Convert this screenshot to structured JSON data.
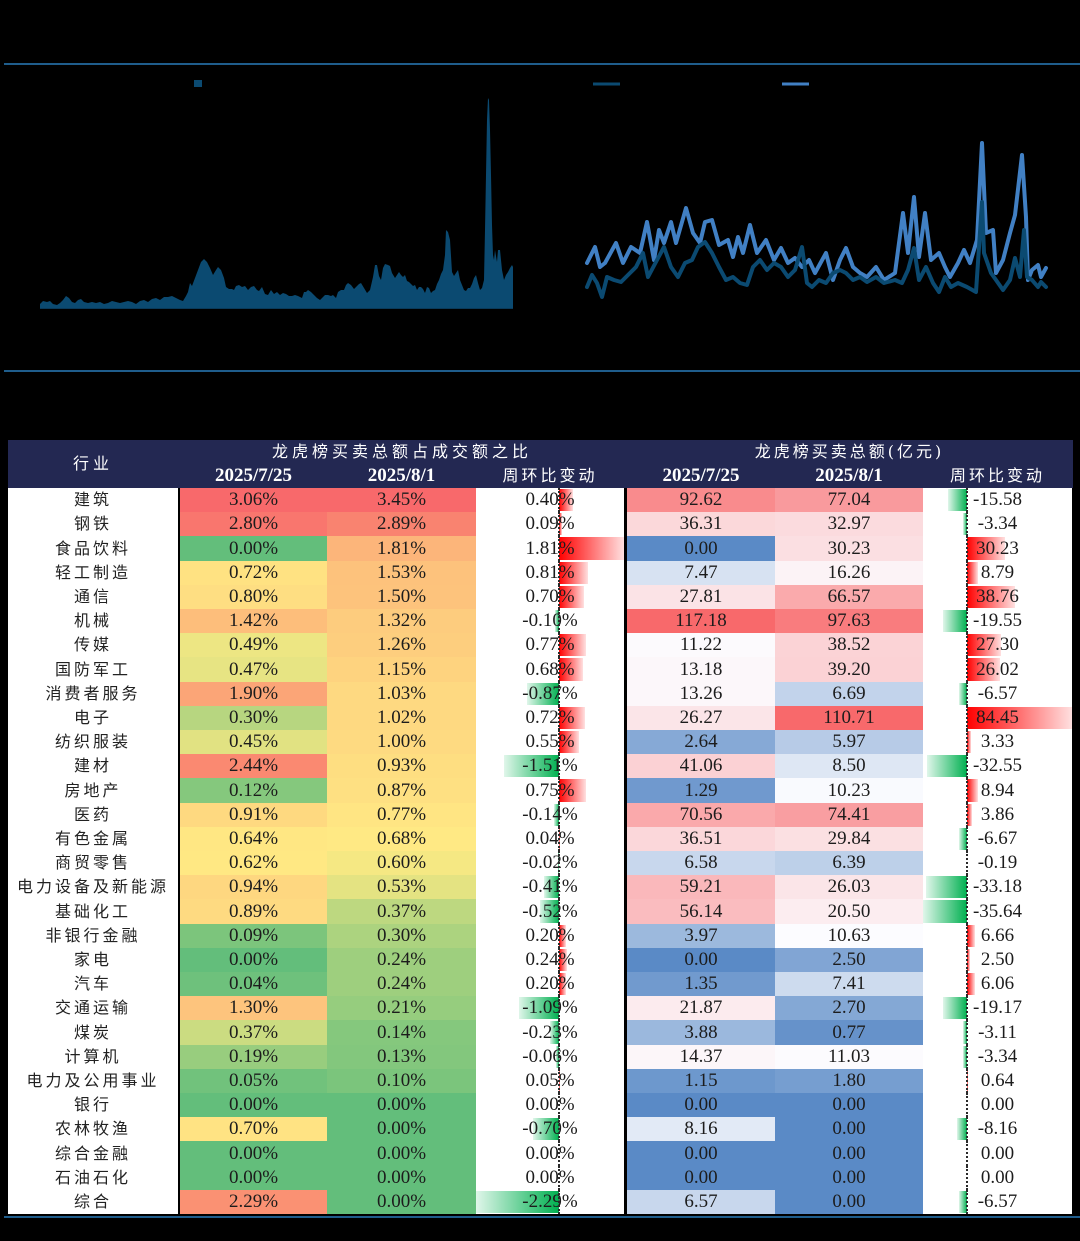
{
  "rules": {
    "color": "#1f5d8c"
  },
  "chart_data": [
    {
      "type": "area",
      "title": "",
      "xlabel": "",
      "ylabel": "",
      "legend_position": "top",
      "series": [
        {
          "name": "",
          "color": "#0b4a71",
          "x": [
            0,
            3,
            7,
            10,
            13,
            17,
            20,
            23,
            26,
            29,
            32,
            35,
            38,
            41,
            44,
            48,
            52,
            56,
            60,
            64,
            68,
            72,
            76,
            80,
            84,
            88,
            92,
            96,
            100,
            104,
            108,
            112,
            116,
            120,
            124,
            128,
            132,
            136,
            140,
            143,
            146,
            148,
            150,
            152,
            155,
            158,
            161,
            164,
            167,
            170,
            173,
            176,
            178,
            181,
            184,
            186,
            189,
            192,
            194,
            196,
            199,
            202,
            205,
            208,
            211,
            214,
            217,
            219,
            222,
            225,
            228,
            231,
            234,
            237,
            240,
            243,
            246,
            249,
            252,
            255,
            258,
            260,
            262,
            264,
            266,
            268,
            271,
            274,
            277,
            280,
            283,
            285,
            288,
            291,
            293,
            296,
            298,
            301,
            304,
            306,
            308,
            311,
            314,
            317,
            319,
            321,
            324,
            327,
            330,
            333,
            335,
            337,
            339,
            341,
            343,
            345,
            348,
            350,
            352,
            355,
            357,
            359,
            361,
            363,
            365,
            367,
            369,
            371,
            373,
            375,
            377,
            379,
            381,
            383,
            385,
            387,
            389,
            391,
            393,
            395,
            397,
            399,
            401,
            403,
            405,
            406,
            408,
            410,
            412,
            414,
            416,
            418,
            420,
            422,
            424,
            426,
            428,
            430,
            432,
            434,
            436,
            438,
            440,
            442,
            444,
            445,
            446,
            447,
            448,
            449,
            450,
            451,
            452,
            453,
            454,
            455,
            457,
            458,
            460,
            462,
            464,
            466,
            468,
            470,
            472,
            473
          ],
          "values": [
            4,
            7,
            6,
            7,
            4,
            3,
            5,
            8,
            12,
            10,
            6,
            5,
            8,
            9,
            6,
            5,
            6,
            5,
            6,
            4,
            5,
            7,
            6,
            5,
            6,
            7,
            6,
            4,
            7,
            8,
            6,
            9,
            10,
            8,
            11,
            11,
            12,
            10,
            8,
            7,
            12,
            16,
            25,
            22,
            30,
            38,
            46,
            49,
            46,
            40,
            33,
            38,
            41,
            38,
            30,
            21,
            19,
            19,
            18,
            22,
            23,
            21,
            22,
            18,
            21,
            22,
            18,
            17,
            21,
            14,
            13,
            18,
            14,
            16,
            13,
            15,
            14,
            12,
            12,
            13,
            12,
            11,
            10,
            16,
            16,
            18,
            16,
            13,
            10,
            8,
            11,
            13,
            13,
            12,
            13,
            10,
            16,
            18,
            18,
            23,
            25,
            23,
            19,
            22,
            24,
            25,
            20,
            15,
            18,
            31,
            43,
            43,
            32,
            28,
            40,
            44,
            43,
            42,
            35,
            30,
            33,
            36,
            33,
            31,
            33,
            27,
            26,
            24,
            22,
            23,
            18,
            21,
            21,
            19,
            15,
            21,
            20,
            15,
            17,
            18,
            24,
            28,
            34,
            38,
            53,
            78,
            76,
            68,
            36,
            32,
            35,
            38,
            28,
            23,
            18,
            17,
            20,
            20,
            24,
            30,
            33,
            25,
            18,
            20,
            28,
            78,
            133,
            188,
            210,
            208,
            178,
            133,
            83,
            53,
            48,
            58,
            46,
            58,
            58,
            38,
            28,
            33,
            36,
            40,
            43,
            41
          ]
        }
      ]
    },
    {
      "type": "line",
      "title": "",
      "xlabel": "",
      "ylabel": "",
      "legend_position": "top",
      "series": [
        {
          "name": "",
          "color": "#0b4a71",
          "x": [
            0,
            5,
            10,
            15,
            20,
            27,
            34,
            43,
            49,
            56,
            61,
            70,
            77,
            84,
            91,
            98,
            105,
            111,
            118,
            125,
            132,
            139,
            146,
            153,
            160,
            166,
            173,
            180,
            187,
            194,
            201,
            208,
            215,
            220,
            225,
            232,
            239,
            246,
            253,
            259,
            266,
            273,
            280,
            289,
            297,
            308,
            315,
            321,
            327,
            332,
            339,
            346,
            352,
            358,
            364,
            371,
            380,
            389,
            395,
            397,
            404,
            409,
            416,
            423,
            428,
            433,
            437,
            440,
            445,
            451,
            454,
            459
          ],
          "values": [
            13,
            25,
            17,
            3,
            23,
            20,
            18,
            27,
            33,
            47,
            23,
            40,
            53,
            33,
            23,
            37,
            40,
            53,
            58,
            47,
            33,
            20,
            23,
            17,
            15,
            33,
            40,
            30,
            37,
            33,
            23,
            30,
            53,
            17,
            13,
            20,
            17,
            27,
            30,
            27,
            20,
            23,
            18,
            23,
            17,
            20,
            17,
            30,
            52,
            20,
            33,
            17,
            8,
            23,
            13,
            17,
            13,
            8,
            98,
            47,
            27,
            20,
            10,
            20,
            42,
            23,
            70,
            23,
            20,
            13,
            18,
            13
          ]
        },
        {
          "name": "",
          "color": "#4180c4",
          "x": [
            0,
            8,
            13,
            18,
            29,
            36,
            44,
            53,
            60,
            67,
            72,
            77,
            84,
            89,
            99,
            106,
            113,
            118,
            125,
            132,
            141,
            146,
            151,
            156,
            163,
            170,
            179,
            187,
            194,
            201,
            208,
            215,
            222,
            228,
            239,
            246,
            253,
            259,
            266,
            273,
            280,
            289,
            297,
            308,
            316,
            321,
            327,
            332,
            338,
            344,
            352,
            358,
            363,
            371,
            377,
            383,
            390,
            395,
            399,
            406,
            409,
            416,
            423,
            428,
            435,
            439,
            441,
            445,
            451,
            454,
            459
          ],
          "values": [
            37,
            53,
            33,
            37,
            57,
            37,
            53,
            47,
            78,
            40,
            70,
            57,
            78,
            57,
            92,
            67,
            57,
            78,
            80,
            55,
            60,
            43,
            63,
            47,
            75,
            47,
            60,
            40,
            52,
            37,
            42,
            33,
            40,
            27,
            47,
            20,
            40,
            52,
            33,
            27,
            23,
            33,
            20,
            27,
            87,
            47,
            103,
            43,
            87,
            40,
            47,
            33,
            23,
            37,
            50,
            37,
            60,
            157,
            67,
            70,
            27,
            40,
            67,
            85,
            145,
            83,
            20,
            30,
            35,
            23,
            32
          ]
        }
      ]
    },
    {
      "type": "table",
      "header": {
        "industry": "行业",
        "group_ratio": "龙虎榜买卖总额占成交额之比",
        "group_amount": "龙虎榜买卖总额(亿元)",
        "ratio_0725": "2025/7/25",
        "ratio_0801": "2025/8/1",
        "ratio_wow": "周环比变动",
        "amount_0725": "2025/7/25",
        "amount_0801": "2025/8/1",
        "amount_wow": "周环比变动"
      },
      "styles": {
        "header_bg": "#232852",
        "ratio_scale": [
          "#63BE7B",
          "#FFEB84",
          "#F8696B"
        ],
        "amount_scale": [
          "#5A8AC6",
          "#FCFCFF",
          "#F8696B"
        ],
        "bar_positive": "#FF0000",
        "bar_negative": "#00B050"
      },
      "rows": [
        {
          "industry": "建筑",
          "ratio_0725": "3.06%",
          "ratio_0801": "3.45%",
          "ratio_wow": "0.40%",
          "amount_0725": "92.62",
          "amount_0801": "77.04",
          "amount_wow": "-15.58"
        },
        {
          "industry": "钢铁",
          "ratio_0725": "2.80%",
          "ratio_0801": "2.89%",
          "ratio_wow": "0.09%",
          "amount_0725": "36.31",
          "amount_0801": "32.97",
          "amount_wow": "-3.34"
        },
        {
          "industry": "食品饮料",
          "ratio_0725": "0.00%",
          "ratio_0801": "1.81%",
          "ratio_wow": "1.81%",
          "amount_0725": "0.00",
          "amount_0801": "30.23",
          "amount_wow": "30.23"
        },
        {
          "industry": "轻工制造",
          "ratio_0725": "0.72%",
          "ratio_0801": "1.53%",
          "ratio_wow": "0.81%",
          "amount_0725": "7.47",
          "amount_0801": "16.26",
          "amount_wow": "8.79"
        },
        {
          "industry": "通信",
          "ratio_0725": "0.80%",
          "ratio_0801": "1.50%",
          "ratio_wow": "0.70%",
          "amount_0725": "27.81",
          "amount_0801": "66.57",
          "amount_wow": "38.76"
        },
        {
          "industry": "机械",
          "ratio_0725": "1.42%",
          "ratio_0801": "1.32%",
          "ratio_wow": "-0.10%",
          "amount_0725": "117.18",
          "amount_0801": "97.63",
          "amount_wow": "-19.55"
        },
        {
          "industry": "传媒",
          "ratio_0725": "0.49%",
          "ratio_0801": "1.26%",
          "ratio_wow": "0.77%",
          "amount_0725": "11.22",
          "amount_0801": "38.52",
          "amount_wow": "27.30"
        },
        {
          "industry": "国防军工",
          "ratio_0725": "0.47%",
          "ratio_0801": "1.15%",
          "ratio_wow": "0.68%",
          "amount_0725": "13.18",
          "amount_0801": "39.20",
          "amount_wow": "26.02"
        },
        {
          "industry": "消费者服务",
          "ratio_0725": "1.90%",
          "ratio_0801": "1.03%",
          "ratio_wow": "-0.87%",
          "amount_0725": "13.26",
          "amount_0801": "6.69",
          "amount_wow": "-6.57"
        },
        {
          "industry": "电子",
          "ratio_0725": "0.30%",
          "ratio_0801": "1.02%",
          "ratio_wow": "0.72%",
          "amount_0725": "26.27",
          "amount_0801": "110.71",
          "amount_wow": "84.45"
        },
        {
          "industry": "纺织服装",
          "ratio_0725": "0.45%",
          "ratio_0801": "1.00%",
          "ratio_wow": "0.55%",
          "amount_0725": "2.64",
          "amount_0801": "5.97",
          "amount_wow": "3.33"
        },
        {
          "industry": "建材",
          "ratio_0725": "2.44%",
          "ratio_0801": "0.93%",
          "ratio_wow": "-1.51%",
          "amount_0725": "41.06",
          "amount_0801": "8.50",
          "amount_wow": "-32.55"
        },
        {
          "industry": "房地产",
          "ratio_0725": "0.12%",
          "ratio_0801": "0.87%",
          "ratio_wow": "0.75%",
          "amount_0725": "1.29",
          "amount_0801": "10.23",
          "amount_wow": "8.94"
        },
        {
          "industry": "医药",
          "ratio_0725": "0.91%",
          "ratio_0801": "0.77%",
          "ratio_wow": "-0.14%",
          "amount_0725": "70.56",
          "amount_0801": "74.41",
          "amount_wow": "3.86"
        },
        {
          "industry": "有色金属",
          "ratio_0725": "0.64%",
          "ratio_0801": "0.68%",
          "ratio_wow": "0.04%",
          "amount_0725": "36.51",
          "amount_0801": "29.84",
          "amount_wow": "-6.67"
        },
        {
          "industry": "商贸零售",
          "ratio_0725": "0.62%",
          "ratio_0801": "0.60%",
          "ratio_wow": "-0.02%",
          "amount_0725": "6.58",
          "amount_0801": "6.39",
          "amount_wow": "-0.19"
        },
        {
          "industry": "电力设备及新能源",
          "ratio_0725": "0.94%",
          "ratio_0801": "0.53%",
          "ratio_wow": "-0.41%",
          "amount_0725": "59.21",
          "amount_0801": "26.03",
          "amount_wow": "-33.18"
        },
        {
          "industry": "基础化工",
          "ratio_0725": "0.89%",
          "ratio_0801": "0.37%",
          "ratio_wow": "-0.52%",
          "amount_0725": "56.14",
          "amount_0801": "20.50",
          "amount_wow": "-35.64"
        },
        {
          "industry": "非银行金融",
          "ratio_0725": "0.09%",
          "ratio_0801": "0.30%",
          "ratio_wow": "0.20%",
          "amount_0725": "3.97",
          "amount_0801": "10.63",
          "amount_wow": "6.66"
        },
        {
          "industry": "家电",
          "ratio_0725": "0.00%",
          "ratio_0801": "0.24%",
          "ratio_wow": "0.24%",
          "amount_0725": "0.00",
          "amount_0801": "2.50",
          "amount_wow": "2.50"
        },
        {
          "industry": "汽车",
          "ratio_0725": "0.04%",
          "ratio_0801": "0.24%",
          "ratio_wow": "0.20%",
          "amount_0725": "1.35",
          "amount_0801": "7.41",
          "amount_wow": "6.06"
        },
        {
          "industry": "交通运输",
          "ratio_0725": "1.30%",
          "ratio_0801": "0.21%",
          "ratio_wow": "-1.09%",
          "amount_0725": "21.87",
          "amount_0801": "2.70",
          "amount_wow": "-19.17"
        },
        {
          "industry": "煤炭",
          "ratio_0725": "0.37%",
          "ratio_0801": "0.14%",
          "ratio_wow": "-0.23%",
          "amount_0725": "3.88",
          "amount_0801": "0.77",
          "amount_wow": "-3.11"
        },
        {
          "industry": "计算机",
          "ratio_0725": "0.19%",
          "ratio_0801": "0.13%",
          "ratio_wow": "-0.06%",
          "amount_0725": "14.37",
          "amount_0801": "11.03",
          "amount_wow": "-3.34"
        },
        {
          "industry": "电力及公用事业",
          "ratio_0725": "0.05%",
          "ratio_0801": "0.10%",
          "ratio_wow": "0.05%",
          "amount_0725": "1.15",
          "amount_0801": "1.80",
          "amount_wow": "0.64"
        },
        {
          "industry": "银行",
          "ratio_0725": "0.00%",
          "ratio_0801": "0.00%",
          "ratio_wow": "0.00%",
          "amount_0725": "0.00",
          "amount_0801": "0.00",
          "amount_wow": "0.00"
        },
        {
          "industry": "农林牧渔",
          "ratio_0725": "0.70%",
          "ratio_0801": "0.00%",
          "ratio_wow": "-0.70%",
          "amount_0725": "8.16",
          "amount_0801": "0.00",
          "amount_wow": "-8.16"
        },
        {
          "industry": "综合金融",
          "ratio_0725": "0.00%",
          "ratio_0801": "0.00%",
          "ratio_wow": "0.00%",
          "amount_0725": "0.00",
          "amount_0801": "0.00",
          "amount_wow": "0.00"
        },
        {
          "industry": "石油石化",
          "ratio_0725": "0.00%",
          "ratio_0801": "0.00%",
          "ratio_wow": "0.00%",
          "amount_0725": "0.00",
          "amount_0801": "0.00",
          "amount_wow": "0.00"
        },
        {
          "industry": "综合",
          "ratio_0725": "2.29%",
          "ratio_0801": "0.00%",
          "ratio_wow": "-2.29%",
          "amount_0725": "6.57",
          "amount_0801": "0.00",
          "amount_wow": "-6.57"
        }
      ]
    }
  ]
}
